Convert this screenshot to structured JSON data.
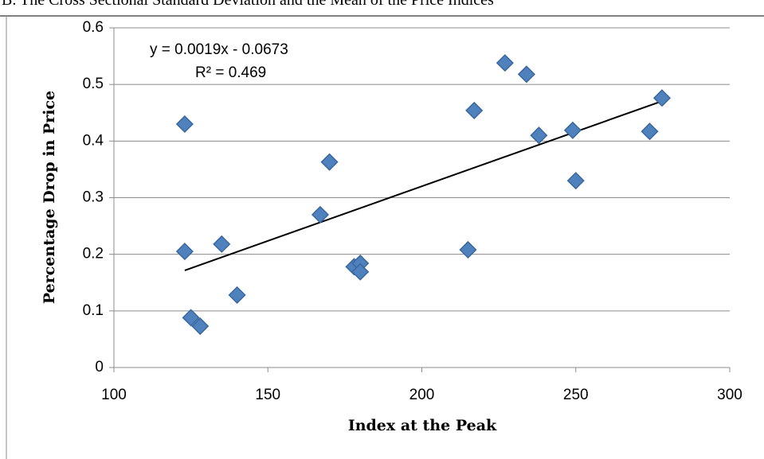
{
  "chart_data": {
    "type": "scatter",
    "title": "B. The Cross Sectional Standard Deviation and the Mean of the Price Indices",
    "x_label": "Index at the Peak",
    "y_label": "Percentage Drop in Price",
    "x": [
      123,
      123,
      125,
      128,
      135,
      140,
      167,
      170,
      178,
      180,
      180,
      215,
      217,
      227,
      234,
      238,
      249,
      250,
      274,
      278
    ],
    "series": [
      {
        "color": "#4f81bd",
        "values": [
          0.43,
          0.205,
          0.088,
          0.073,
          0.218,
          0.128,
          0.27,
          0.363,
          0.178,
          0.184,
          0.169,
          0.208,
          0.454,
          0.538,
          0.518,
          0.41,
          0.419,
          0.33,
          0.417,
          0.476
        ]
      }
    ],
    "trendline": {
      "equation": "y = 0.0019x - 0.0673",
      "r_squared": "R² = 0.469",
      "color": "#000000"
    },
    "xlim": [
      100,
      300
    ],
    "xticks": [
      100,
      150,
      200,
      250,
      300
    ],
    "ylim": [
      0,
      0.6
    ],
    "yticks": [
      0,
      0.1,
      0.2,
      0.3,
      0.4,
      0.5,
      0.6
    ],
    "grid": true
  }
}
